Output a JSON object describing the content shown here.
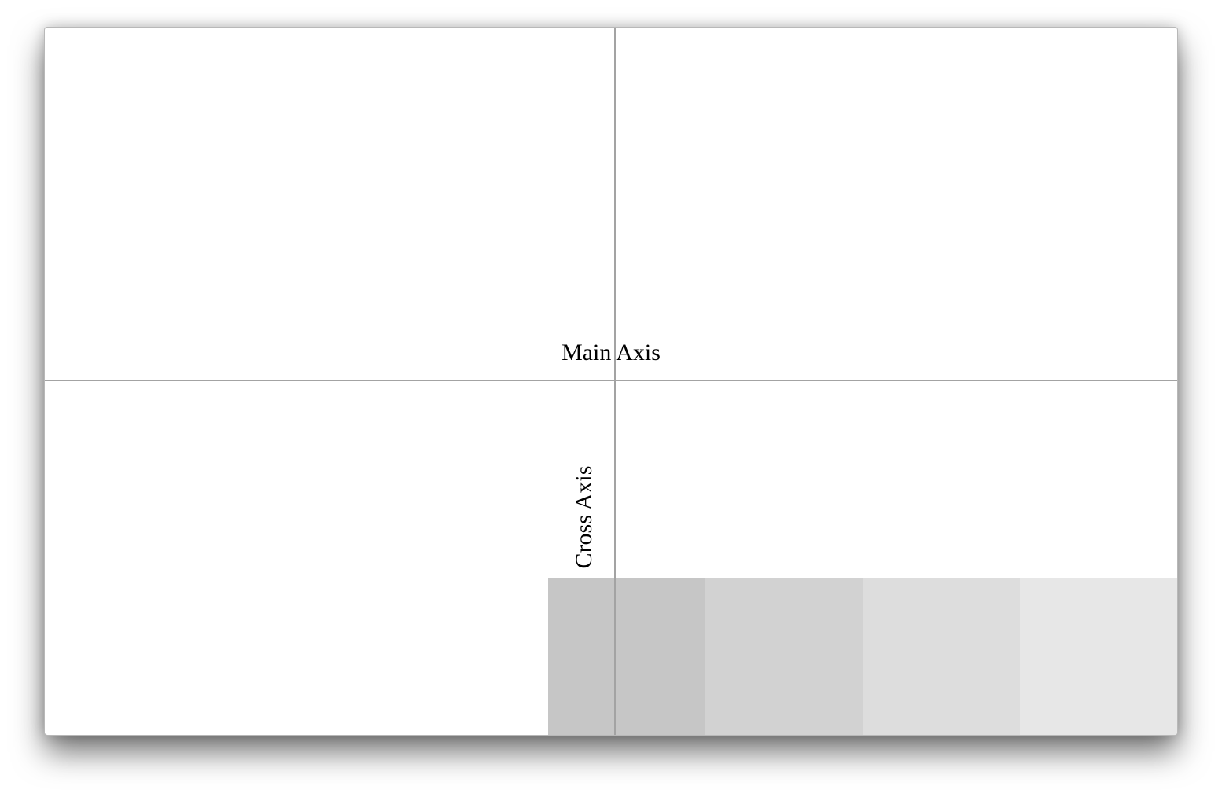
{
  "diagram": {
    "main_axis_label": "Main Axis",
    "cross_axis_label": "Cross Axis",
    "flex_items": [
      {
        "color": "#c6c6c6"
      },
      {
        "color": "#d2d2d2"
      },
      {
        "color": "#dddddd"
      },
      {
        "color": "#e7e7e7"
      }
    ]
  },
  "colors": {
    "axis_line": "#a3a3a3",
    "background": "#ffffff"
  }
}
